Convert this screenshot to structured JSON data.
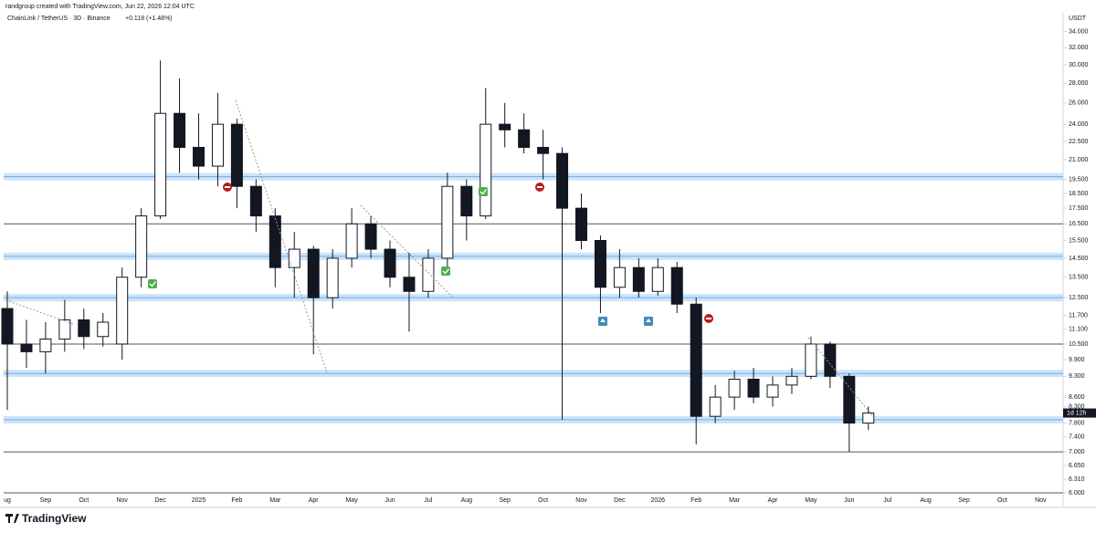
{
  "header": {
    "author_line": "randgroup created with TradingView.com, Jun 22, 2026 12:04 UTC",
    "symbol_line": "ChainLink / TetherUS · 3D · Binance",
    "change": "+0.118 (+1.48%)"
  },
  "chart_data": {
    "type": "candlestick",
    "y_unit": "USDT",
    "log_scale": true,
    "countdown": "1d 12h",
    "categories": [
      "ug",
      null,
      "Sep",
      null,
      "Oct",
      null,
      "Nov",
      null,
      "Dec",
      null,
      "2025",
      null,
      "Feb",
      null,
      "Mar",
      null,
      "Apr",
      null,
      "May",
      null,
      "Jun",
      null,
      "Jul",
      null,
      "Aug",
      null,
      "Sep",
      null,
      "Oct",
      null,
      "Nov",
      null,
      "Dec",
      null,
      "2026",
      null,
      "Feb",
      null,
      "Mar",
      null,
      "Apr",
      null,
      "May",
      null,
      "Jun",
      null,
      "Jul",
      null,
      "Aug",
      null,
      "Sep",
      null,
      "Oct",
      null,
      "Nov",
      null
    ],
    "open": [
      12.0,
      10.5,
      10.2,
      10.7,
      11.5,
      10.8,
      10.5,
      13.5,
      17.0,
      25.0,
      22.0,
      20.5,
      24.0,
      19.0,
      17.0,
      14.0,
      15.0,
      12.5,
      14.5,
      16.5,
      15.0,
      13.5,
      12.8,
      14.5,
      19.0,
      17.0,
      24.0,
      23.5,
      22.0,
      21.5,
      17.5,
      15.5,
      13.0,
      14.0,
      12.8,
      14.0,
      12.2,
      8.0,
      8.6,
      9.2,
      8.6,
      9.0,
      9.3,
      10.5,
      9.3,
      7.8,
      null,
      null,
      null,
      null,
      null,
      null,
      null,
      null,
      null,
      null
    ],
    "high": [
      12.8,
      11.5,
      11.4,
      12.4,
      12.0,
      11.8,
      14.0,
      17.5,
      30.5,
      28.5,
      25.0,
      27.0,
      24.5,
      19.5,
      17.5,
      16.0,
      15.2,
      15.0,
      17.5,
      17.0,
      15.5,
      14.8,
      15.0,
      20.0,
      19.5,
      27.5,
      26.0,
      25.0,
      23.5,
      22.0,
      18.5,
      15.8,
      15.0,
      14.5,
      14.5,
      14.3,
      12.5,
      9.0,
      9.5,
      9.6,
      9.3,
      9.6,
      10.8,
      10.6,
      9.4,
      8.3,
      null,
      null,
      null,
      null,
      null,
      null,
      null,
      null,
      null,
      null
    ],
    "low": [
      8.2,
      9.6,
      9.4,
      10.2,
      10.3,
      10.4,
      9.9,
      13.0,
      16.8,
      20.0,
      19.5,
      19.0,
      17.5,
      16.0,
      13.0,
      12.5,
      10.1,
      12.0,
      14.0,
      14.5,
      13.0,
      11.0,
      12.5,
      14.0,
      15.5,
      16.8,
      22.0,
      21.5,
      19.5,
      7.9,
      15.0,
      11.8,
      12.5,
      12.5,
      12.6,
      11.8,
      7.2,
      7.8,
      8.2,
      8.4,
      8.3,
      8.7,
      9.2,
      8.9,
      7.0,
      7.6,
      null,
      null,
      null,
      null,
      null,
      null,
      null,
      null,
      null,
      null
    ],
    "close": [
      10.5,
      10.2,
      10.7,
      11.5,
      10.8,
      11.4,
      13.5,
      17.0,
      25.0,
      22.0,
      20.5,
      24.0,
      19.0,
      17.0,
      14.0,
      15.0,
      12.5,
      14.5,
      16.5,
      15.0,
      13.5,
      12.8,
      14.5,
      19.0,
      17.0,
      24.0,
      23.5,
      22.0,
      21.5,
      17.5,
      15.5,
      13.0,
      14.0,
      12.8,
      14.0,
      12.2,
      8.0,
      8.6,
      9.2,
      8.6,
      9.0,
      9.3,
      10.5,
      9.3,
      7.8,
      8.1,
      null,
      null,
      null,
      null,
      null,
      null,
      null,
      null,
      null,
      null
    ],
    "up_color": "#ffffff",
    "down_color": "#131722",
    "ylim": [
      6,
      36
    ],
    "yticks": [
      {
        "value": 34,
        "label": "34.000"
      },
      {
        "value": 32,
        "label": "32.000"
      },
      {
        "value": 30,
        "label": "30.000"
      },
      {
        "value": 28,
        "label": "28.000"
      },
      {
        "value": 26,
        "label": "26.000"
      },
      {
        "value": 24,
        "label": "24.000"
      },
      {
        "value": 22.5,
        "label": "22.500"
      },
      {
        "value": 21,
        "label": "21.000"
      },
      {
        "value": 19.5,
        "label": "19.500"
      },
      {
        "value": 18.5,
        "label": "18.500"
      },
      {
        "value": 17.5,
        "label": "17.500"
      },
      {
        "value": 16.5,
        "label": "16.500"
      },
      {
        "value": 15.5,
        "label": "15.500"
      },
      {
        "value": 14.5,
        "label": "14.500"
      },
      {
        "value": 13.5,
        "label": "13.500"
      },
      {
        "value": 12.5,
        "label": "12.500"
      },
      {
        "value": 11.7,
        "label": "11.700"
      },
      {
        "value": 11.1,
        "label": "11.100"
      },
      {
        "value": 10.5,
        "label": "10.500"
      },
      {
        "value": 9.9,
        "label": "9.900"
      },
      {
        "value": 9.3,
        "label": "9.300"
      },
      {
        "value": 8.6,
        "label": "8.600"
      },
      {
        "value": 8.3,
        "label": "8.300"
      },
      {
        "value": 7.8,
        "label": "7.800"
      },
      {
        "value": 7.4,
        "label": "7.400"
      },
      {
        "value": 7,
        "label": "7.000"
      },
      {
        "value": 6.65,
        "label": "6.650"
      },
      {
        "value": 6.31,
        "label": "6.310"
      },
      {
        "value": 6,
        "label": "6.000"
      }
    ],
    "zones": [
      19.7,
      14.6,
      12.5,
      9.4,
      7.9
    ],
    "zone_color": "#bbdefb",
    "lines": [
      16.5,
      10.5,
      7.0,
      6.0
    ],
    "line_color": "#555555"
  },
  "footer": {
    "brand": "TradingView"
  }
}
